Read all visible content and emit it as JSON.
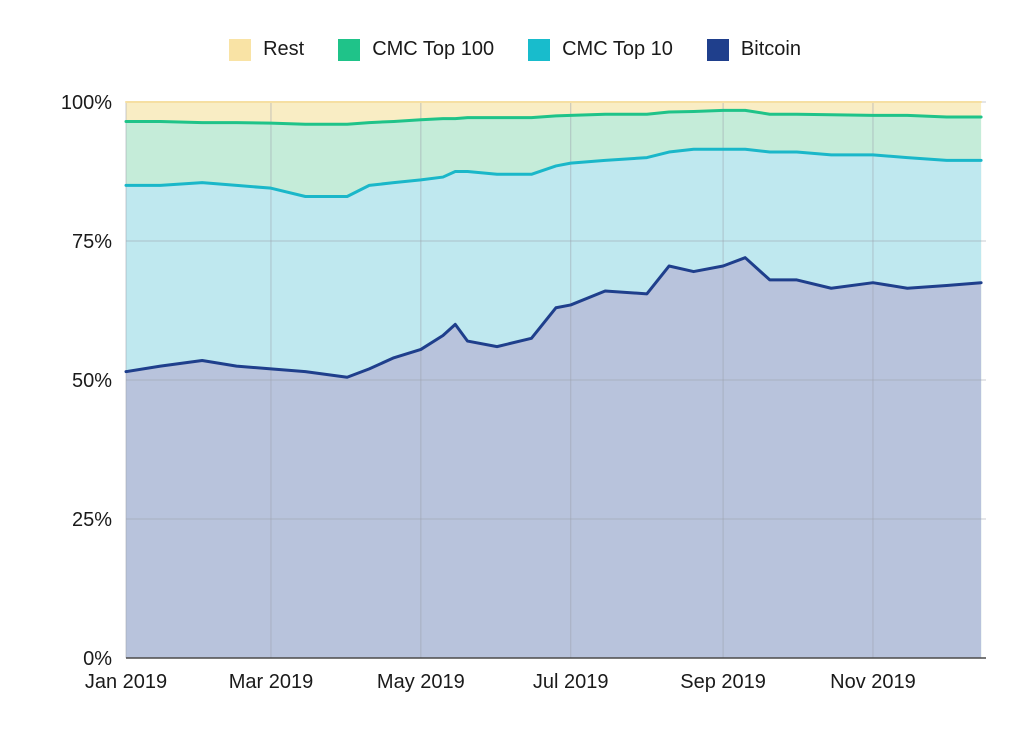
{
  "chart_data": {
    "type": "area",
    "stacked": true,
    "title": "",
    "xlabel": "",
    "ylabel": "",
    "ylim": [
      0,
      100
    ],
    "y_unit": "%",
    "grid": true,
    "legend_position": "top",
    "x_dates": [
      "2019-01-01",
      "2019-01-15",
      "2019-02-01",
      "2019-02-15",
      "2019-03-01",
      "2019-03-15",
      "2019-04-01",
      "2019-04-10",
      "2019-04-20",
      "2019-05-01",
      "2019-05-10",
      "2019-05-15",
      "2019-05-20",
      "2019-06-01",
      "2019-06-15",
      "2019-06-25",
      "2019-07-01",
      "2019-07-15",
      "2019-08-01",
      "2019-08-10",
      "2019-08-20",
      "2019-09-01",
      "2019-09-10",
      "2019-09-20",
      "2019-10-01",
      "2019-10-15",
      "2019-11-01",
      "2019-11-15",
      "2019-12-01",
      "2019-12-15"
    ],
    "x_ticks": [
      {
        "date": "2019-01-01",
        "label": "Jan 2019"
      },
      {
        "date": "2019-03-01",
        "label": "Mar 2019"
      },
      {
        "date": "2019-05-01",
        "label": "May 2019"
      },
      {
        "date": "2019-07-01",
        "label": "Jul 2019"
      },
      {
        "date": "2019-09-01",
        "label": "Sep 2019"
      },
      {
        "date": "2019-11-01",
        "label": "Nov 2019"
      }
    ],
    "y_ticks": [
      {
        "value": 0,
        "label": "0%"
      },
      {
        "value": 25,
        "label": "25%"
      },
      {
        "value": 50,
        "label": "50%"
      },
      {
        "value": 75,
        "label": "75%"
      },
      {
        "value": 100,
        "label": "100%"
      }
    ],
    "series": [
      {
        "name": "Bitcoin",
        "color": "#1f3f8c",
        "fill": "#b8c3dc",
        "values": [
          51.5,
          52.5,
          53.5,
          52.5,
          52.0,
          51.5,
          50.5,
          52.0,
          54.0,
          55.5,
          58.0,
          60.0,
          57.0,
          56.0,
          57.5,
          63.0,
          63.5,
          66.0,
          65.5,
          70.5,
          69.5,
          70.5,
          72.0,
          68.0,
          68.0,
          66.5,
          67.5,
          66.5,
          67.0,
          67.5
        ]
      },
      {
        "name": "CMC Top 10",
        "color": "#1ab7c9",
        "fill": "#bfe8ef",
        "values": [
          85.0,
          85.0,
          85.5,
          85.0,
          84.5,
          83.0,
          83.0,
          85.0,
          85.5,
          86.0,
          86.5,
          87.5,
          87.5,
          87.0,
          87.0,
          88.5,
          89.0,
          89.5,
          90.0,
          91.0,
          91.5,
          91.5,
          91.5,
          91.0,
          91.0,
          90.5,
          90.5,
          90.0,
          89.5,
          89.5
        ]
      },
      {
        "name": "CMC Top 100",
        "color": "#1fc389",
        "fill": "#c5ecd9",
        "values": [
          96.5,
          96.5,
          96.3,
          96.3,
          96.2,
          96.0,
          96.0,
          96.3,
          96.5,
          96.8,
          97.0,
          97.0,
          97.2,
          97.2,
          97.2,
          97.5,
          97.6,
          97.8,
          97.8,
          98.2,
          98.3,
          98.5,
          98.5,
          97.8,
          97.8,
          97.7,
          97.6,
          97.6,
          97.3,
          97.3
        ]
      },
      {
        "name": "Rest",
        "color": "#f6dfa2",
        "fill": "#f9edc4",
        "values": [
          100,
          100,
          100,
          100,
          100,
          100,
          100,
          100,
          100,
          100,
          100,
          100,
          100,
          100,
          100,
          100,
          100,
          100,
          100,
          100,
          100,
          100,
          100,
          100,
          100,
          100,
          100,
          100,
          100,
          100
        ]
      }
    ],
    "x_range": [
      "2019-01-01",
      "2019-12-17"
    ]
  },
  "legend": {
    "items": [
      {
        "label": "Rest",
        "color": "#f9e3a5"
      },
      {
        "label": "CMC Top 100",
        "color": "#1fc389"
      },
      {
        "label": "CMC Top 10",
        "color": "#18bccc"
      },
      {
        "label": "Bitcoin",
        "color": "#1f3f8c"
      }
    ]
  }
}
